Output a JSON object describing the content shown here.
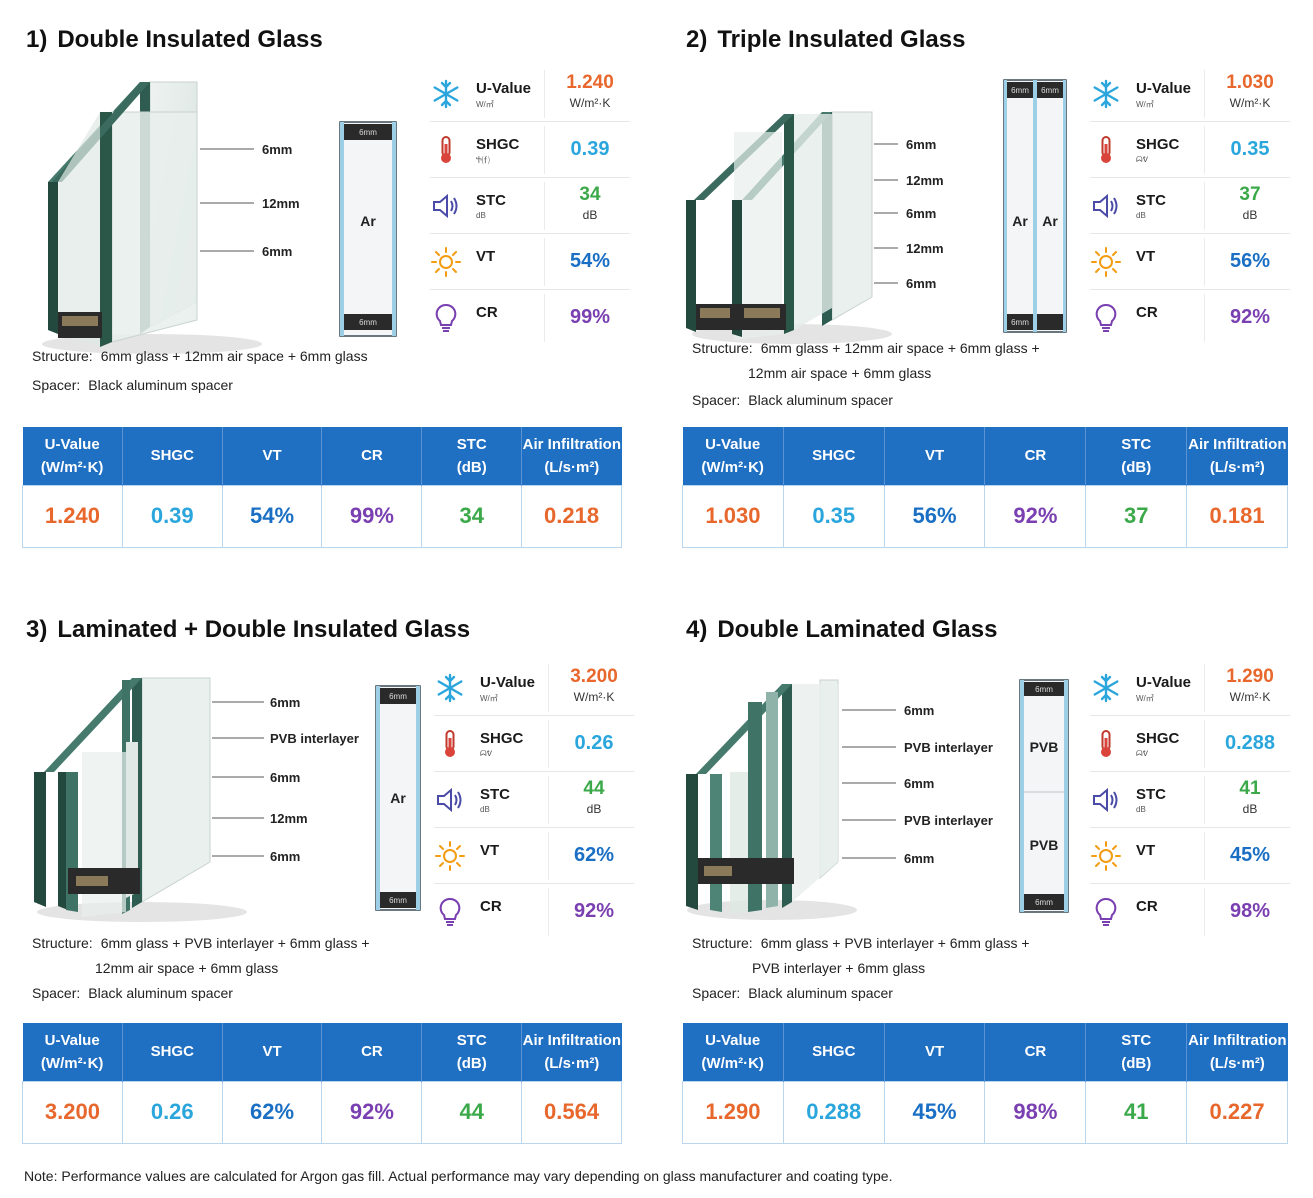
{
  "panels": [
    {
      "num": "1)",
      "title": "Double Insulated Glass",
      "labels": [
        "6mm",
        "12mm",
        "6mm"
      ],
      "diagram": [
        "6mm",
        "Ar",
        "6mm"
      ],
      "metrics": {
        "uvalue": {
          "name": "U-Value",
          "sub": "W/㎡",
          "value": "1.240",
          "unit": "W/m²·K"
        },
        "shgc": {
          "name": "SHGC",
          "sub": "Ⴕ⒡",
          "value": "0.39"
        },
        "stc": {
          "name": "STC",
          "sub": "dB",
          "value": "34",
          "unit": "dB"
        },
        "vt": {
          "name": "VT",
          "value": "54%"
        },
        "cr": {
          "name": "CR",
          "value": "99%"
        }
      },
      "structure_label": "Structure:",
      "structure_line1": "6mm glass + 12mm air space + 6mm glass",
      "structure_line2": "",
      "spacer_label": "Spacer:",
      "spacer_value": "Black aluminum spacer",
      "table_headers": [
        "U-Value\n(W/m²·K)",
        "SHGC",
        "VT",
        "CR",
        "STC\n(dB)",
        "Air Infiltration\n(L/s·m²)"
      ],
      "table_values": [
        "1.240",
        "0.39",
        "54%",
        "99%",
        "34",
        "0.218"
      ]
    },
    {
      "num": "2)",
      "title": "Triple Insulated Glass",
      "labels": [
        "6mm",
        "12mm",
        "6mm",
        "12mm",
        "6mm"
      ],
      "diagram": [
        "6mm",
        "Ar",
        "6mm",
        "Ar",
        "6mm"
      ],
      "metrics": {
        "uvalue": {
          "name": "U-Value",
          "sub": "W/㎡",
          "value": "1.030",
          "unit": "W/m²·K"
        },
        "shgc": {
          "name": "SHGC",
          "sub": "ᗣᕓ",
          "value": "0.35"
        },
        "stc": {
          "name": "STC",
          "sub": "dB",
          "value": "37",
          "unit": "dB"
        },
        "vt": {
          "name": "VT",
          "value": "56%"
        },
        "cr": {
          "name": "CR",
          "value": "92%"
        }
      },
      "structure_label": "Structure:",
      "structure_line1": "6mm glass + 12mm air space + 6mm glass +",
      "structure_line2": "12mm air space + 6mm glass",
      "spacer_label": "Spacer:",
      "spacer_value": "Black aluminum spacer",
      "table_headers": [
        "U-Value\n(W/m²·K)",
        "SHGC",
        "VT",
        "CR",
        "STC\n(dB)",
        "Air Infiltration\n(L/s·m²)"
      ],
      "table_values": [
        "1.030",
        "0.35",
        "56%",
        "92%",
        "37",
        "0.181"
      ]
    },
    {
      "num": "3)",
      "title": "Laminated + Double Insulated Glass",
      "labels": [
        "6mm",
        "PVB interlayer",
        "6mm",
        "12mm",
        "6mm"
      ],
      "diagram": [
        "6mm",
        "Ar",
        "6mm"
      ],
      "metrics": {
        "uvalue": {
          "name": "U-Value",
          "sub": "W/㎡",
          "value": "3.200",
          "unit": "W/m²·K"
        },
        "shgc": {
          "name": "SHGC",
          "sub": "ᗣᕓ",
          "value": "0.26"
        },
        "stc": {
          "name": "STC",
          "sub": "dB",
          "value": "44",
          "unit": "dB"
        },
        "vt": {
          "name": "VT",
          "value": "62%"
        },
        "cr": {
          "name": "CR",
          "value": "92%"
        }
      },
      "structure_label": "Structure:",
      "structure_line1": "6mm glass + PVB interlayer + 6mm glass +",
      "structure_line2": "12mm air space + 6mm glass",
      "spacer_label": "Spacer:",
      "spacer_value": "Black aluminum spacer",
      "table_headers": [
        "U-Value\n(W/m²·K)",
        "SHGC",
        "VT",
        "CR",
        "STC\n(dB)",
        "Air Infiltration\n(L/s·m²)"
      ],
      "table_values": [
        "3.200",
        "0.26",
        "62%",
        "92%",
        "44",
        "0.564"
      ]
    },
    {
      "num": "4)",
      "title": "Double Laminated Glass",
      "labels": [
        "6mm",
        "PVB interlayer",
        "6mm",
        "PVB interlayer",
        "6mm"
      ],
      "diagram": [
        "6mm",
        "PVB",
        "PVB",
        "6mm"
      ],
      "metrics": {
        "uvalue": {
          "name": "U-Value",
          "sub": "W/㎡",
          "value": "1.290",
          "unit": "W/m²·K"
        },
        "shgc": {
          "name": "SHGC",
          "sub": "ᗣᕓ",
          "value": "0.288"
        },
        "stc": {
          "name": "STC",
          "sub": "dB",
          "value": "41",
          "unit": "dB"
        },
        "vt": {
          "name": "VT",
          "value": "45%"
        },
        "cr": {
          "name": "CR",
          "value": "98%"
        }
      },
      "structure_label": "Structure:",
      "structure_line1": "6mm glass + PVB interlayer + 6mm glass +",
      "structure_line2": "PVB interlayer + 6mm glass",
      "spacer_label": "Spacer:",
      "spacer_value": "Black aluminum spacer",
      "table_headers": [
        "U-Value\n(W/m²·K)",
        "SHGC",
        "VT",
        "CR",
        "STC\n(dB)",
        "Air Infiltration\n(L/s·m²)"
      ],
      "table_values": [
        "1.290",
        "0.288",
        "45%",
        "98%",
        "41",
        "0.227"
      ]
    }
  ],
  "colors": {
    "header_blue": "#1f6fc2",
    "uvalue": "#e8672c",
    "shgc": "#2aa6dc",
    "stc": "#3ba94a",
    "vt": "#1a6fc4",
    "cr": "#7a3fb0"
  },
  "icons": {
    "uvalue": "snowflake-icon",
    "shgc": "thermometer-icon",
    "stc": "speaker-icon",
    "vt": "sun-icon",
    "cr": "lightbulb-icon"
  },
  "note": "Note: Performance values are calculated for Argon gas fill. Actual performance may vary depending on glass manufacturer and coating type."
}
